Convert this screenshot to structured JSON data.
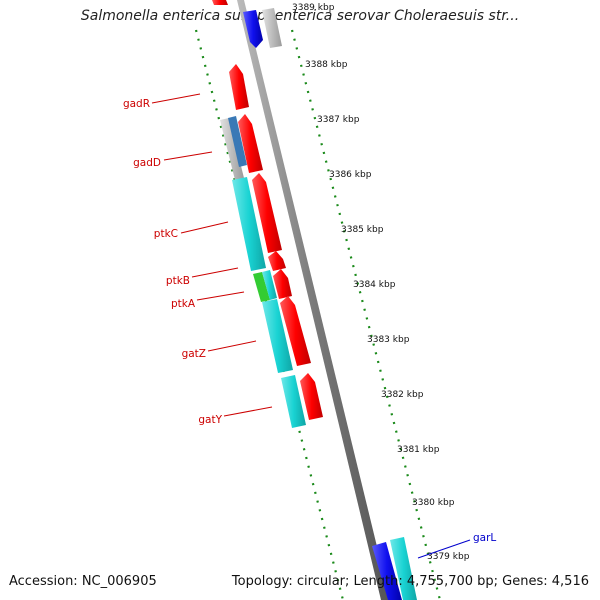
{
  "title": "Salmonella enterica subsp. enterica serovar Choleraesuis str...",
  "footer": {
    "accession": "Accession: NC_006905",
    "topology": "Topology: circular; Length: 4,755,700 bp; Genes: 4,516"
  },
  "kbp_labels": [
    "3389 kbp",
    "3388 kbp",
    "3387 kbp",
    "3386 kbp",
    "3385 kbp",
    "3384 kbp",
    "3383 kbp",
    "3382 kbp",
    "3381 kbp",
    "3380 kbp",
    "3379 kbp"
  ],
  "gene_labels": {
    "gadR": "gadR",
    "gadD": "gadD",
    "ptkC": "ptkC",
    "ptkB": "ptkB",
    "ptkA": "ptkA",
    "gatZ": "gatZ",
    "gatY": "gatY",
    "garL": "garL"
  },
  "colors": {
    "red": "#ff0000",
    "cyan": "#19d3d3",
    "blue": "#1010ee",
    "gray": "#b8b8b8",
    "green": "#33cc33",
    "tick_green": "#1a8a1a",
    "backbone": "#7a7a7a",
    "label_red": "#cc0000",
    "label_blue": "#0000cc"
  }
}
